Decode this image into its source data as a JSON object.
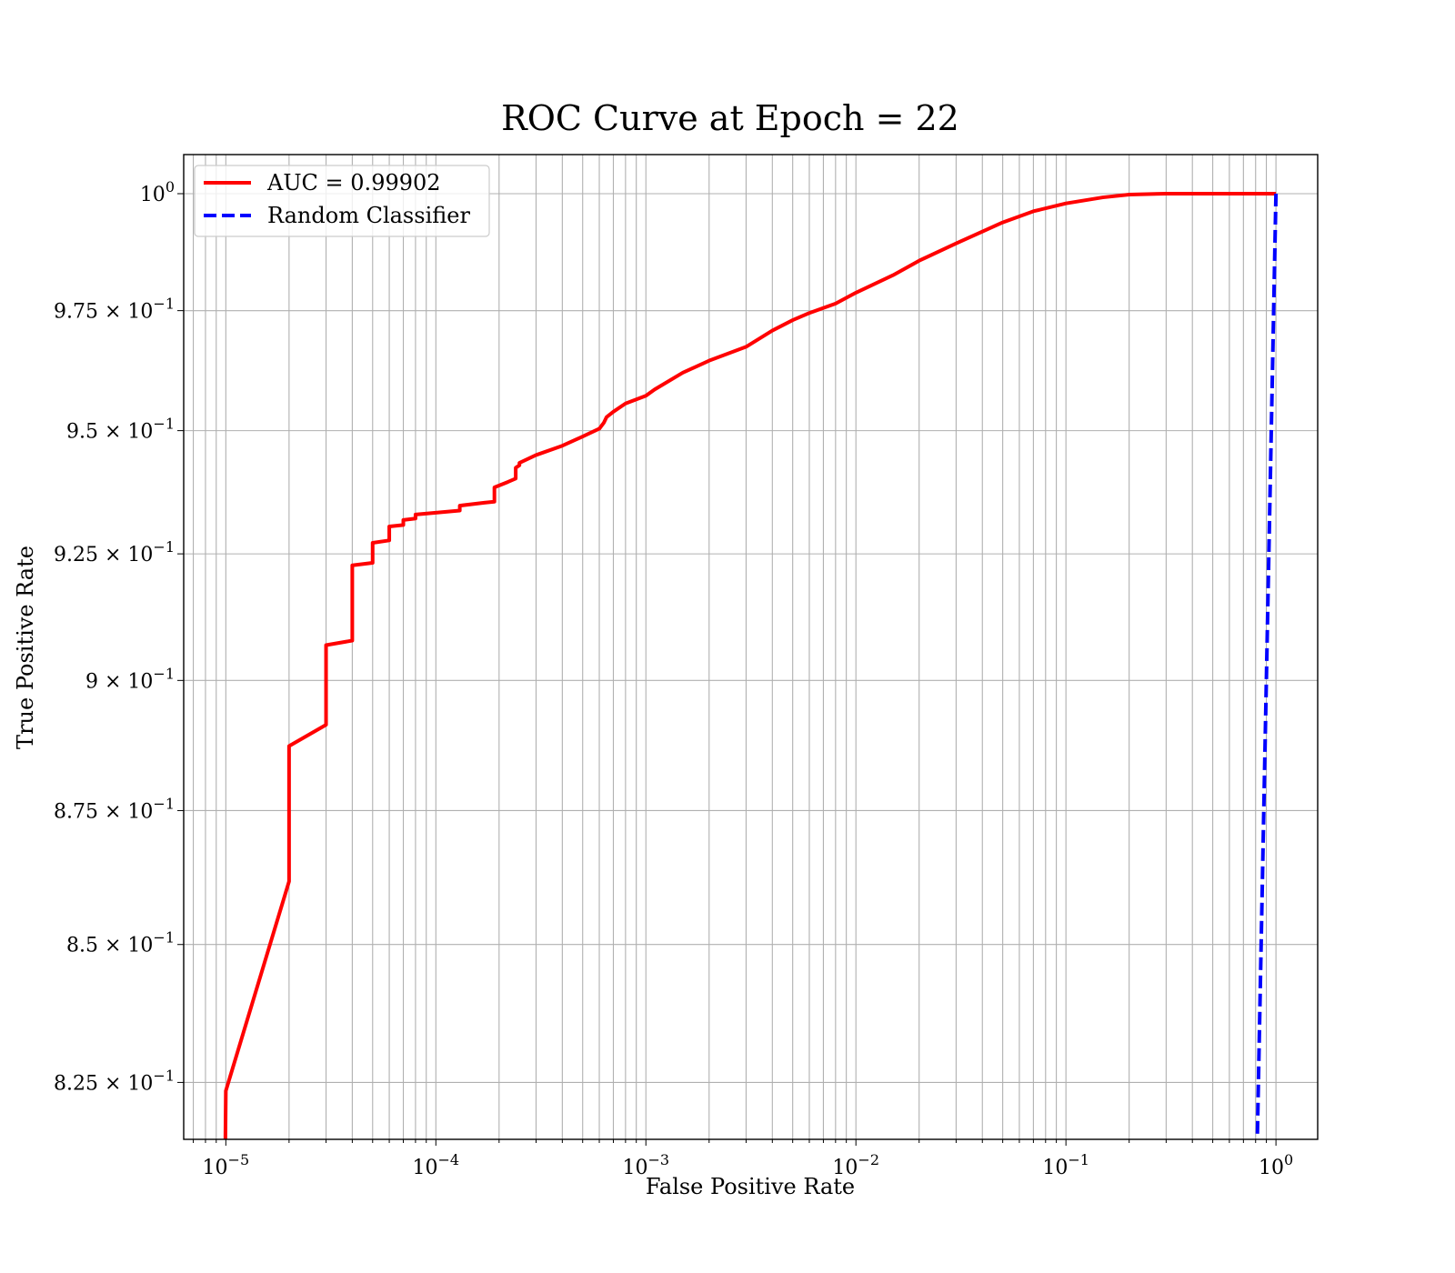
{
  "chart_data": {
    "type": "line",
    "title": "ROC Curve at Epoch = 22",
    "xlabel": "False Positive Rate",
    "ylabel": "True Positive Rate",
    "x_scale": "log",
    "y_scale": "log",
    "xlim": [
      6.3e-06,
      1.58
    ],
    "ylim": [
      0.8149,
      1.0085
    ],
    "grid": true,
    "legend_position": "top-left",
    "x_ticks": [
      {
        "value": 1e-05,
        "base": "10",
        "exp": "−5"
      },
      {
        "value": 0.0001,
        "base": "10",
        "exp": "−4"
      },
      {
        "value": 0.001,
        "base": "10",
        "exp": "−3"
      },
      {
        "value": 0.01,
        "base": "10",
        "exp": "−2"
      },
      {
        "value": 0.1,
        "base": "10",
        "exp": "−1"
      },
      {
        "value": 1,
        "base": "10",
        "exp": "0"
      }
    ],
    "y_ticks": [
      {
        "value": 0.825,
        "base": "8.25 × 10",
        "exp": "−1"
      },
      {
        "value": 0.85,
        "base": "8.5 × 10",
        "exp": "−1"
      },
      {
        "value": 0.875,
        "base": "8.75 × 10",
        "exp": "−1"
      },
      {
        "value": 0.9,
        "base": "9 × 10",
        "exp": "−1"
      },
      {
        "value": 0.925,
        "base": "9.25 × 10",
        "exp": "−1"
      },
      {
        "value": 0.95,
        "base": "9.5 × 10",
        "exp": "−1"
      },
      {
        "value": 0.975,
        "base": "9.75 × 10",
        "exp": "−1"
      },
      {
        "value": 1.0,
        "base": "10",
        "exp": "0"
      }
    ],
    "series": [
      {
        "name": "AUC = 0.99902",
        "color": "#ff0000",
        "style": "solid",
        "x": [
          9.95e-06,
          1e-05,
          2e-05,
          2e-05,
          3e-05,
          3e-05,
          4e-05,
          4e-05,
          5e-05,
          5e-05,
          6e-05,
          6e-05,
          7e-05,
          7e-05,
          8e-05,
          8e-05,
          0.00013,
          0.00013,
          0.00017,
          0.00019,
          0.00019,
          0.00022,
          0.00024,
          0.00024,
          0.00025,
          0.00025,
          0.0003,
          0.0004,
          0.0005,
          0.0006,
          0.00063,
          0.00065,
          0.0007,
          0.0008,
          0.001,
          0.0011,
          0.0015,
          0.002,
          0.003,
          0.004,
          0.005,
          0.006,
          0.008,
          0.01,
          0.015,
          0.02,
          0.03,
          0.05,
          0.07,
          0.1,
          0.15,
          0.2,
          0.3,
          0.5,
          0.7,
          1.0
        ],
        "y": [
          0.8149,
          0.8235,
          0.8617,
          0.8873,
          0.8914,
          0.9069,
          0.9078,
          0.9227,
          0.9232,
          0.9272,
          0.9277,
          0.9305,
          0.9308,
          0.9318,
          0.9321,
          0.9329,
          0.9337,
          0.9347,
          0.9353,
          0.9355,
          0.9384,
          0.9395,
          0.9402,
          0.9424,
          0.9429,
          0.9434,
          0.945,
          0.9469,
          0.9488,
          0.9504,
          0.9516,
          0.9528,
          0.9539,
          0.9556,
          0.9572,
          0.9585,
          0.962,
          0.9645,
          0.9674,
          0.9708,
          0.973,
          0.9745,
          0.9765,
          0.9788,
          0.9825,
          0.9856,
          0.9893,
          0.9938,
          0.9962,
          0.9979,
          0.9992,
          0.9998,
          1.0,
          1.0,
          1.0,
          1.0
        ]
      },
      {
        "name": "Random Classifier",
        "color": "#0000ff",
        "style": "dashed",
        "x": [
          0.8,
          1.0
        ],
        "y": [
          0.8,
          1.0
        ]
      }
    ]
  }
}
